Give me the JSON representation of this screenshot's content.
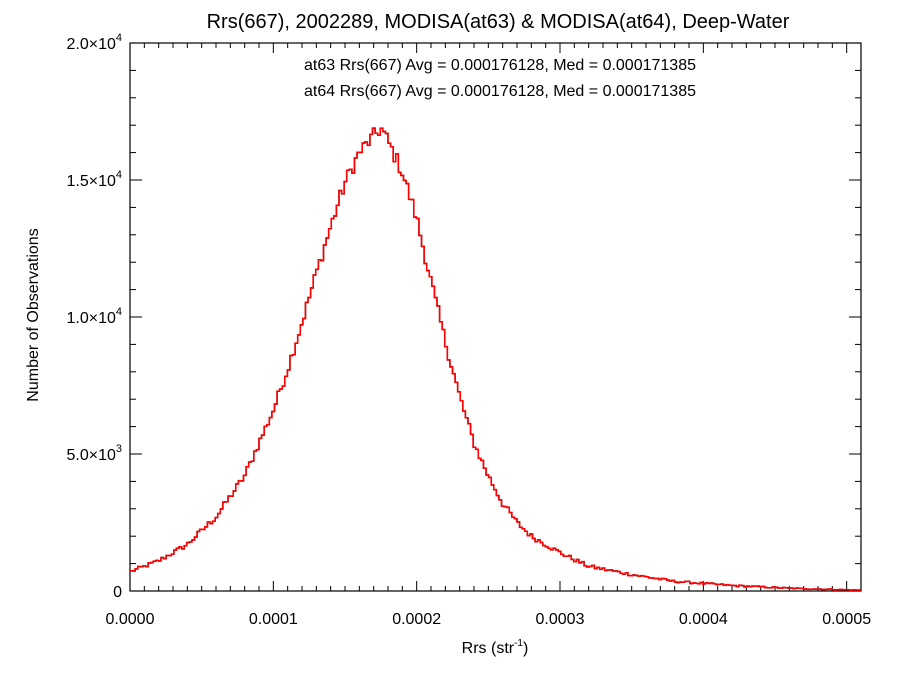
{
  "chart_data": {
    "type": "line",
    "title": "Rrs(667), 2002289, MODISA(at63) & MODISA(at64), Deep-Water",
    "xlabel": "Rrs (str",
    "xlabel_sup": "-1",
    "xlabel_end": ")",
    "ylabel": "Number of Observations",
    "xlim": [
      0,
      0.00051
    ],
    "ylim": [
      0,
      20000
    ],
    "x_ticks": [
      {
        "value": 0.0,
        "label": "0.0000"
      },
      {
        "value": 0.0001,
        "label": "0.0001"
      },
      {
        "value": 0.0002,
        "label": "0.0002"
      },
      {
        "value": 0.0003,
        "label": "0.0003"
      },
      {
        "value": 0.0004,
        "label": "0.0004"
      },
      {
        "value": 0.0005,
        "label": "0.0005"
      }
    ],
    "y_ticks": [
      {
        "value": 0,
        "mant": "0",
        "exp": ""
      },
      {
        "value": 5000,
        "mant": "5.0×10",
        "exp": "3"
      },
      {
        "value": 10000,
        "mant": "1.0×10",
        "exp": "4"
      },
      {
        "value": 15000,
        "mant": "1.5×10",
        "exp": "4"
      },
      {
        "value": 20000,
        "mant": "2.0×10",
        "exp": "4"
      }
    ],
    "grid": false,
    "annotations": [
      {
        "text": "at63 Rrs(667) Avg = 0.000176128, Med = 0.000171385",
        "color": "#000000"
      },
      {
        "text": "at64 Rrs(667) Avg = 0.000176128, Med = 0.000171385",
        "color": "#ff0000"
      }
    ],
    "series": [
      {
        "color": "#000000",
        "x": [
          0.0,
          2e-05,
          4e-05,
          6e-05,
          8e-05,
          0.0001,
          0.00011,
          0.00012,
          0.00013,
          0.00014,
          0.00015,
          0.00016,
          0.00017,
          0.000175,
          0.00018,
          0.00019,
          0.0002,
          0.00021,
          0.00022,
          0.00023,
          0.00024,
          0.00025,
          0.00026,
          0.00027,
          0.00028,
          0.0003,
          0.00032,
          0.00035,
          0.00038,
          0.00042,
          0.00046,
          0.00051
        ],
        "y": [
          700,
          1100,
          1700,
          2700,
          4200,
          6600,
          8100,
          9800,
          11600,
          13300,
          14900,
          16000,
          16600,
          16900,
          16400,
          15300,
          13600,
          11300,
          9100,
          7100,
          5400,
          4200,
          3200,
          2500,
          2000,
          1400,
          900,
          600,
          350,
          200,
          100,
          30
        ]
      },
      {
        "color": "#ff0000",
        "x": [
          0.0,
          2e-05,
          4e-05,
          6e-05,
          8e-05,
          0.0001,
          0.00011,
          0.00012,
          0.00013,
          0.00014,
          0.00015,
          0.00016,
          0.00017,
          0.000175,
          0.00018,
          0.00019,
          0.0002,
          0.00021,
          0.00022,
          0.00023,
          0.00024,
          0.00025,
          0.00026,
          0.00027,
          0.00028,
          0.0003,
          0.00032,
          0.00035,
          0.00038,
          0.00042,
          0.00046,
          0.00051
        ],
        "y": [
          700,
          1100,
          1700,
          2700,
          4200,
          6600,
          8100,
          9800,
          11600,
          13300,
          14900,
          16000,
          16600,
          16900,
          16400,
          15300,
          13600,
          11300,
          9100,
          7100,
          5400,
          4200,
          3200,
          2500,
          2000,
          1400,
          900,
          600,
          350,
          200,
          100,
          30
        ]
      }
    ]
  }
}
